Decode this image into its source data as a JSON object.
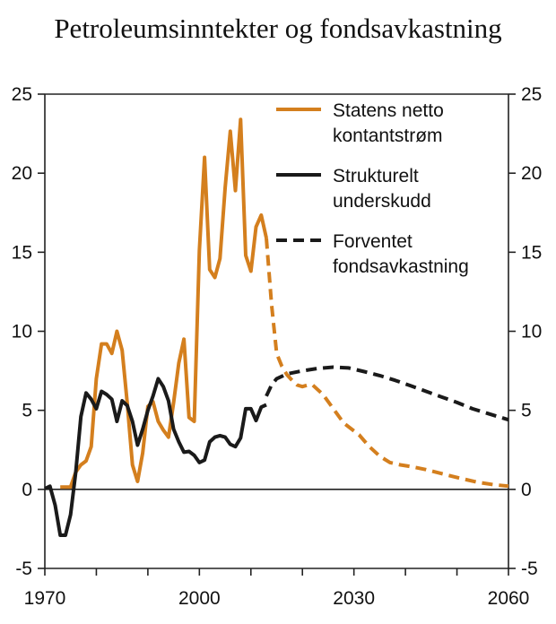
{
  "chart_data": {
    "type": "line",
    "title": "Petroleumsinntekter og fondsavkastning",
    "xlabel": "",
    "ylabel": "",
    "xlim": [
      1970,
      2060
    ],
    "ylim": [
      -5,
      25
    ],
    "x_ticks": [
      1970,
      1980,
      1990,
      2000,
      2010,
      2020,
      2030,
      2040,
      2050,
      2060
    ],
    "x_tick_labels": [
      "1970",
      "2000",
      "2030",
      "2060"
    ],
    "x_tick_label_values": [
      1970,
      2000,
      2030,
      2060
    ],
    "y_ticks": [
      -5,
      0,
      5,
      10,
      15,
      20,
      25
    ],
    "y_tick_labels": [
      "-5",
      "0",
      "5",
      "10",
      "15",
      "20",
      "25"
    ],
    "grid": false,
    "legend_position": "top-right",
    "legend": [
      {
        "lines": [
          "Statens netto",
          "kontantstrøm"
        ],
        "color": "#d47f1e",
        "style": "solid"
      },
      {
        "lines": [
          "Strukturelt",
          "underskudd"
        ],
        "color": "#1a1a1a",
        "style": "solid"
      },
      {
        "lines": [
          "Forventet",
          "fondsavkastning"
        ],
        "color": "#1a1a1a",
        "style": "dashed"
      }
    ],
    "series": [
      {
        "name": "Statens netto kontantstrøm",
        "color": "#d47f1e",
        "style": "solid",
        "x": [
          1973,
          1974,
          1975,
          1976,
          1977,
          1978,
          1979,
          1980,
          1981,
          1982,
          1983,
          1984,
          1985,
          1986,
          1987,
          1988,
          1989,
          1990,
          1991,
          1992,
          1993,
          1994,
          1995,
          1996,
          1997,
          1998,
          1999,
          2000,
          2001,
          2002,
          2003,
          2004,
          2005,
          2006,
          2007,
          2008,
          2009,
          2010,
          2011,
          2012,
          2013
        ],
        "y": [
          0.15,
          0.15,
          0.15,
          1.1,
          1.55,
          1.8,
          2.7,
          7.0,
          9.2,
          9.2,
          8.6,
          10.0,
          8.8,
          5.45,
          1.55,
          0.5,
          2.3,
          5.25,
          5.55,
          4.3,
          3.75,
          3.3,
          5.5,
          8.0,
          9.5,
          4.55,
          4.3,
          15.1,
          21.0,
          13.9,
          13.4,
          14.6,
          19.1,
          22.65,
          18.9,
          23.4,
          14.8,
          13.8,
          16.6,
          17.35,
          15.9
        ]
      },
      {
        "name": "Statens netto kontantstrøm",
        "color": "#d47f1e",
        "style": "dashed",
        "x": [
          2013,
          2014,
          2015,
          2016,
          2017,
          2018,
          2019,
          2020,
          2021,
          2022,
          2024,
          2026,
          2028,
          2031,
          2033,
          2035,
          2037,
          2039,
          2041,
          2044,
          2047,
          2050,
          2054,
          2057,
          2060
        ],
        "y": [
          15.9,
          11.7,
          8.6,
          7.8,
          7.25,
          6.9,
          6.6,
          6.5,
          6.6,
          6.6,
          6.0,
          5.1,
          4.2,
          3.45,
          2.7,
          2.1,
          1.7,
          1.55,
          1.45,
          1.25,
          1.0,
          0.75,
          0.45,
          0.3,
          0.2
        ]
      },
      {
        "name": "Strukturelt underskudd",
        "color": "#1a1a1a",
        "style": "solid",
        "x": [
          1970,
          1971,
          1972,
          1973,
          1974,
          1975,
          1976,
          1977,
          1978,
          1979,
          1980,
          1981,
          1982,
          1983,
          1984,
          1985,
          1986,
          1987,
          1988,
          1989,
          1990,
          1991,
          1992,
          1993,
          1994,
          1995,
          1996,
          1997,
          1998,
          1999,
          2000,
          2001,
          2002,
          2003,
          2004,
          2005,
          2006,
          2007,
          2008,
          2009,
          2010,
          2011,
          2012,
          2013
        ],
        "y": [
          0.05,
          0.2,
          -1.0,
          -2.9,
          -2.9,
          -1.6,
          1.1,
          4.6,
          6.1,
          5.7,
          5.1,
          6.2,
          6.0,
          5.7,
          4.3,
          5.6,
          5.3,
          4.3,
          2.8,
          3.8,
          5.0,
          5.9,
          7.0,
          6.5,
          5.6,
          3.8,
          3.0,
          2.35,
          2.4,
          2.15,
          1.7,
          1.85,
          3.0,
          3.3,
          3.4,
          3.3,
          2.85,
          2.7,
          3.25,
          5.1,
          5.1,
          4.35,
          5.2,
          5.35
        ]
      },
      {
        "name": "Forventet fondsavkastning",
        "color": "#1a1a1a",
        "style": "dashed",
        "x": [
          2013,
          2014,
          2015,
          2017,
          2020,
          2023,
          2026,
          2029,
          2032,
          2035,
          2038,
          2041,
          2044,
          2047,
          2050,
          2053,
          2056,
          2060
        ],
        "y": [
          5.9,
          6.6,
          7.0,
          7.3,
          7.5,
          7.65,
          7.73,
          7.68,
          7.45,
          7.2,
          6.9,
          6.55,
          6.2,
          5.85,
          5.5,
          5.1,
          4.8,
          4.4
        ]
      }
    ]
  }
}
